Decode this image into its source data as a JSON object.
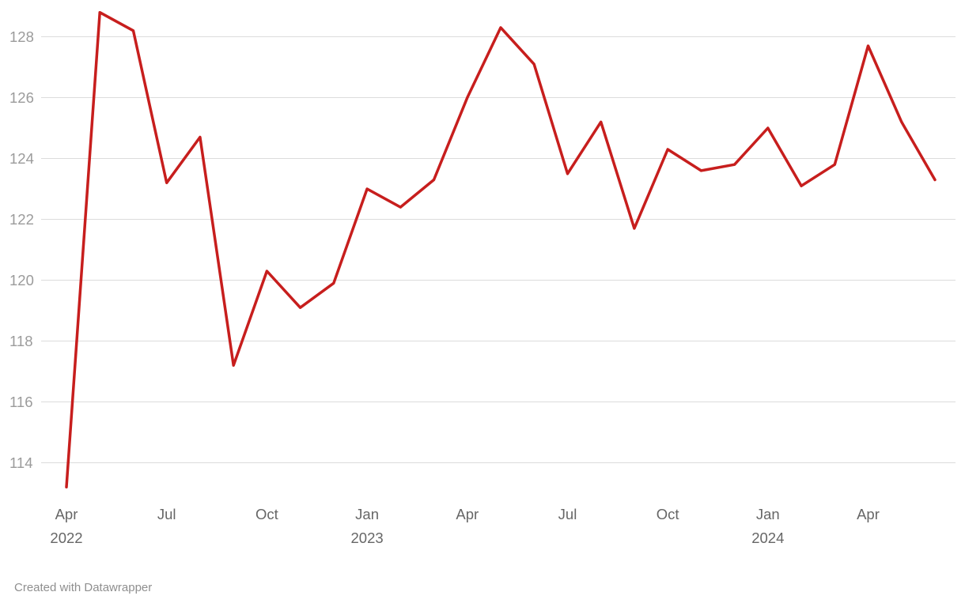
{
  "footer": {
    "attribution": "Created with Datawrapper"
  },
  "chart_data": {
    "type": "line",
    "title": "",
    "xlabel": "",
    "ylabel": "",
    "grid": true,
    "legend": "none",
    "x": [
      "Apr 2022",
      "May 2022",
      "Jun 2022",
      "Jul 2022",
      "Aug 2022",
      "Sep 2022",
      "Oct 2022",
      "Nov 2022",
      "Dec 2022",
      "Jan 2023",
      "Feb 2023",
      "Mar 2023",
      "Apr 2023",
      "May 2023",
      "Jun 2023",
      "Jul 2023",
      "Aug 2023",
      "Sep 2023",
      "Oct 2023",
      "Nov 2023",
      "Dec 2023",
      "Jan 2024",
      "Feb 2024",
      "Mar 2024",
      "Apr 2024",
      "May 2024",
      "Jun 2024"
    ],
    "values": [
      113.2,
      128.8,
      128.2,
      123.2,
      124.7,
      117.2,
      120.3,
      119.1,
      119.9,
      123.0,
      122.4,
      123.3,
      126.0,
      128.3,
      127.1,
      123.5,
      125.2,
      121.7,
      124.3,
      123.6,
      123.8,
      125.0,
      123.1,
      123.8,
      127.7,
      125.2,
      123.3
    ],
    "ylim": [
      113,
      129
    ],
    "yticks": [
      114,
      116,
      118,
      120,
      122,
      124,
      126,
      128
    ],
    "xticks": [
      {
        "index": 0,
        "label": "Apr",
        "year": "2022"
      },
      {
        "index": 3,
        "label": "Jul"
      },
      {
        "index": 6,
        "label": "Oct"
      },
      {
        "index": 9,
        "label": "Jan",
        "year": "2023"
      },
      {
        "index": 12,
        "label": "Apr"
      },
      {
        "index": 15,
        "label": "Jul"
      },
      {
        "index": 18,
        "label": "Oct"
      },
      {
        "index": 21,
        "label": "Jan",
        "year": "2024"
      },
      {
        "index": 24,
        "label": "Apr"
      }
    ],
    "colors": {
      "line": "#c71e1d",
      "grid": "#dcdcdc",
      "y_labels": "#9b9b9b",
      "x_labels": "#666666"
    }
  }
}
